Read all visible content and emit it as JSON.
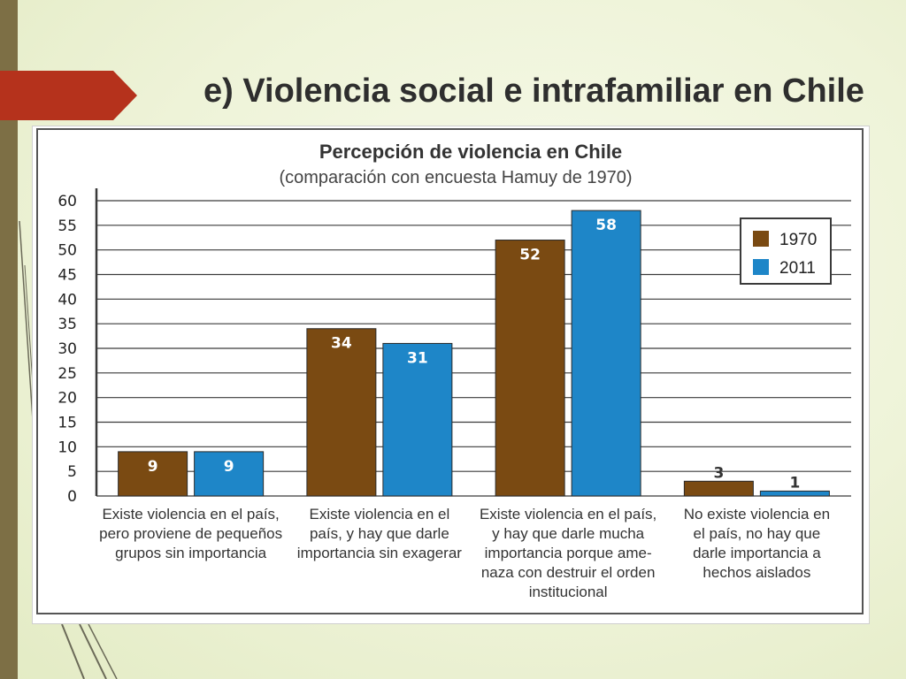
{
  "slide": {
    "title": "e) Violencia social e intrafamiliar en Chile",
    "accent_color": "#b5321c",
    "sidebar_color": "#7d6f45"
  },
  "chart_data": {
    "type": "bar",
    "title": "Percepción de violencia en Chile",
    "subtitle": "(comparación con encuesta Hamuy de 1970)",
    "categories": [
      [
        "Existe violencia en el país,",
        "pero proviene de pequeños",
        "grupos sin importancia"
      ],
      [
        "Existe violencia en el",
        "país, y hay que darle",
        "importancia sin exagerar"
      ],
      [
        "Existe violencia en el país,",
        "y hay que darle mucha",
        "importancia porque ame-",
        "naza con destruir el orden",
        "institucional"
      ],
      [
        "No existe violencia en",
        "el país, no hay que",
        "darle importancia a",
        "hechos aislados"
      ]
    ],
    "series": [
      {
        "name": "1970",
        "values": [
          9,
          34,
          52,
          3
        ],
        "color": "#7a4a12"
      },
      {
        "name": "2011",
        "values": [
          9,
          31,
          58,
          1
        ],
        "color": "#1e86c8"
      }
    ],
    "ylim": [
      0,
      60
    ],
    "yticks": [
      0,
      5,
      10,
      15,
      20,
      25,
      30,
      35,
      40,
      45,
      50,
      55,
      60
    ],
    "grid": true,
    "legend_position": "top-right"
  }
}
